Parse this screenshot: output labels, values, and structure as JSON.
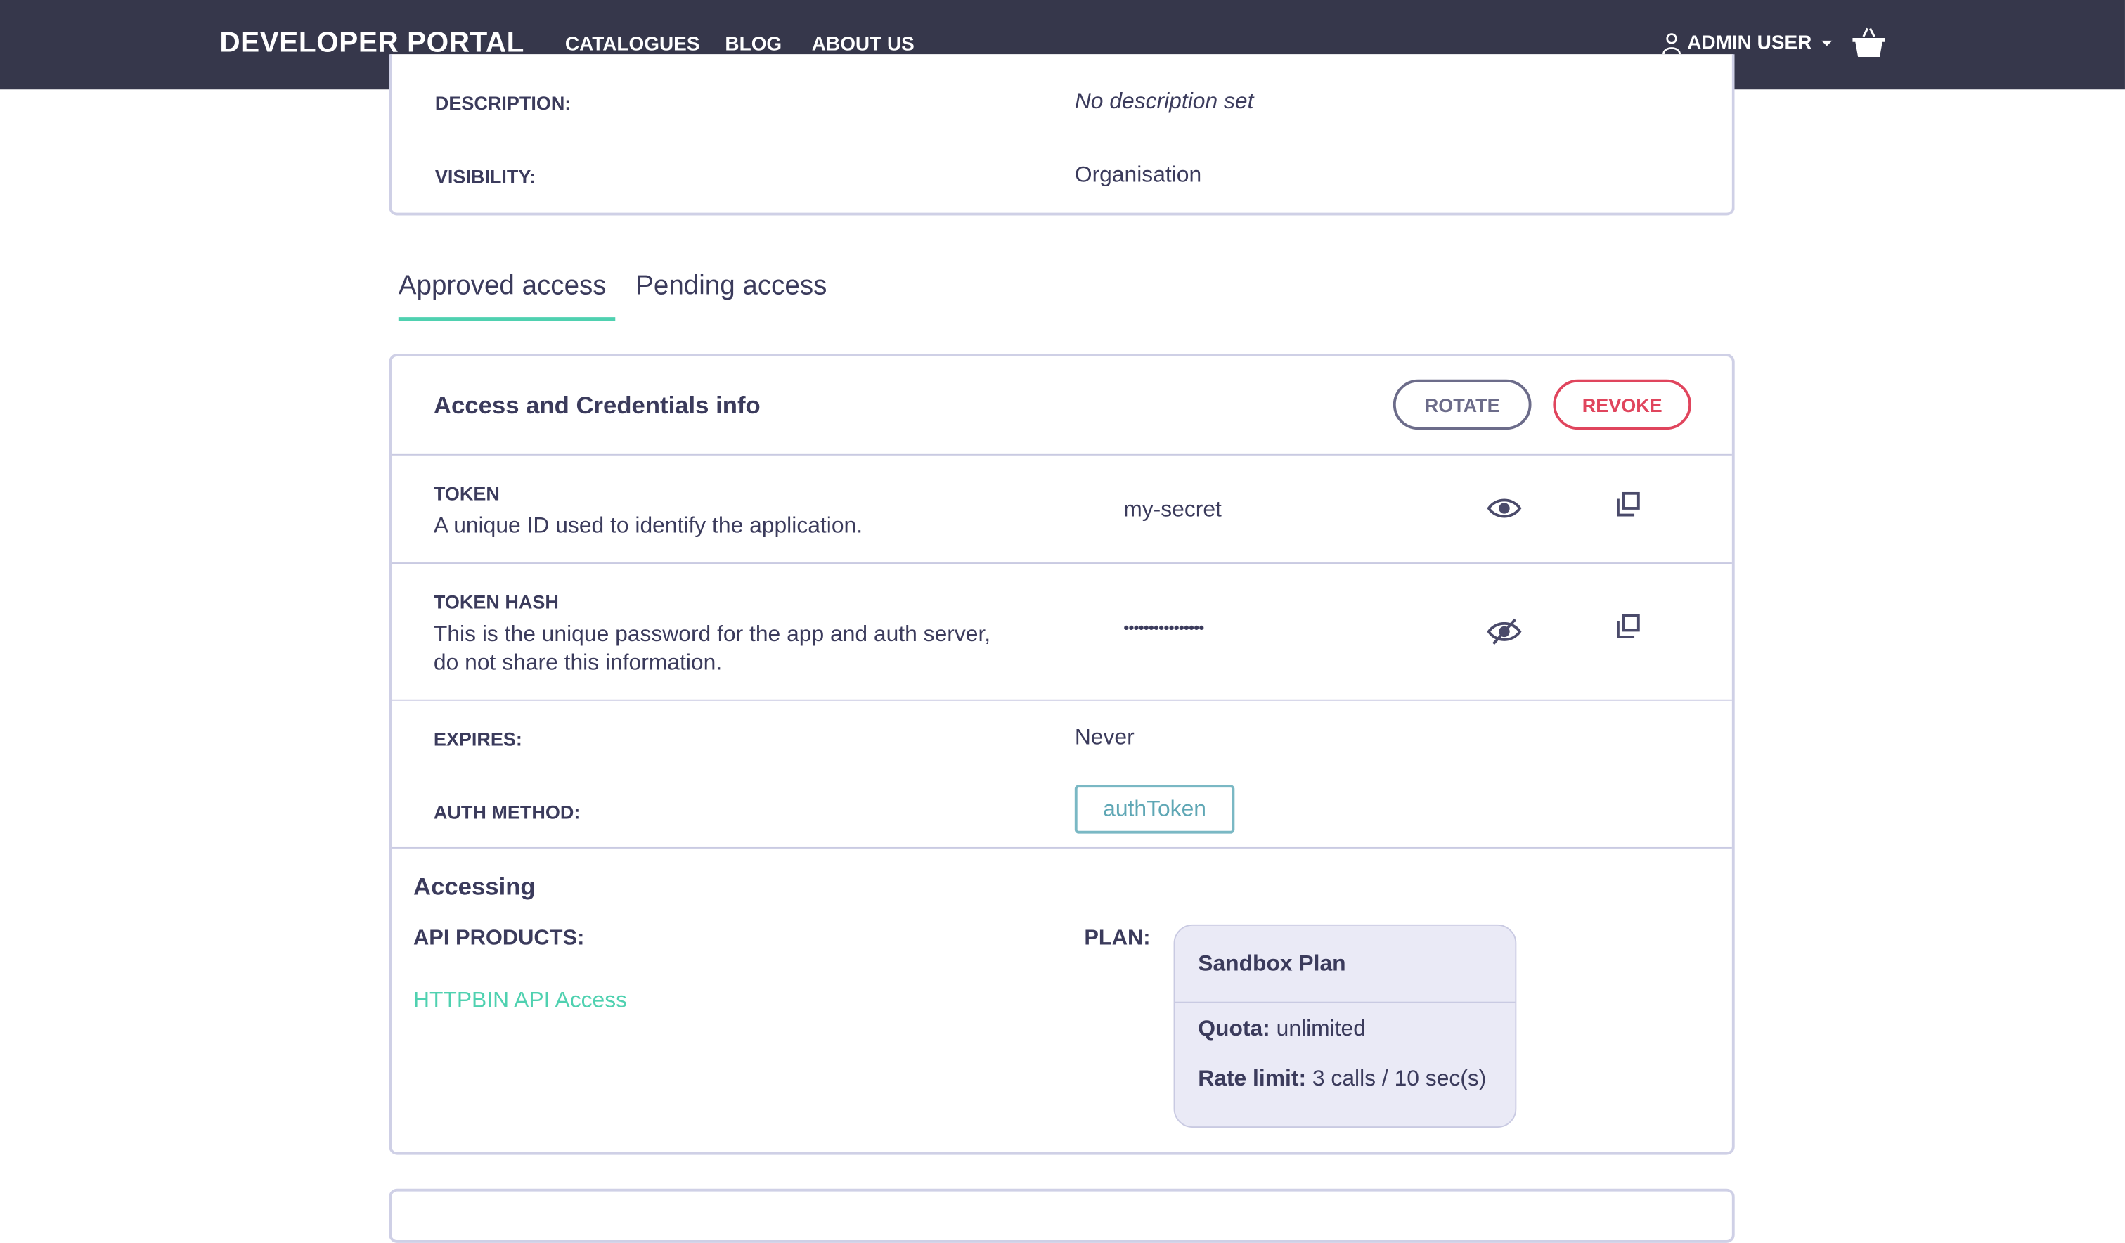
{
  "nav": {
    "brand": "DEVELOPER PORTAL",
    "links": [
      "CATALOGUES",
      "BLOG",
      "ABOUT US"
    ],
    "user": "ADMIN USER"
  },
  "details": {
    "description_label": "DESCRIPTION:",
    "description_value": "No description set",
    "visibility_label": "VISIBILITY:",
    "visibility_value": "Organisation"
  },
  "tabs": [
    {
      "label": "Approved access",
      "active": true
    },
    {
      "label": "Pending access",
      "active": false
    }
  ],
  "credentials": {
    "title": "Access and Credentials info",
    "rotate": "ROTATE",
    "revoke": "REVOKE",
    "token": {
      "label": "TOKEN",
      "desc": "A unique ID used to identify the application.",
      "value": "my-secret"
    },
    "token_hash": {
      "label": "TOKEN HASH",
      "desc1": "This is the unique password for the app and auth server,",
      "desc2": "do not share this information.",
      "value": "••••••••••••••••"
    },
    "expires_label": "EXPIRES:",
    "expires_value": "Never",
    "auth_label": "AUTH METHOD:",
    "auth_value": "authToken"
  },
  "accessing": {
    "title": "Accessing",
    "products_label": "API PRODUCTS:",
    "product": "HTTPBIN API Access",
    "plan_label": "PLAN:",
    "plan": {
      "name": "Sandbox Plan",
      "quota_label": "Quota:",
      "quota": "unlimited",
      "rate_label": "Rate limit:",
      "rate": "3 calls / 10 sec(s)"
    }
  },
  "colors": {
    "nav": "#36374b",
    "accent": "#4fd1b0",
    "revoke": "#e0455d",
    "text": "#3b3b5c"
  }
}
